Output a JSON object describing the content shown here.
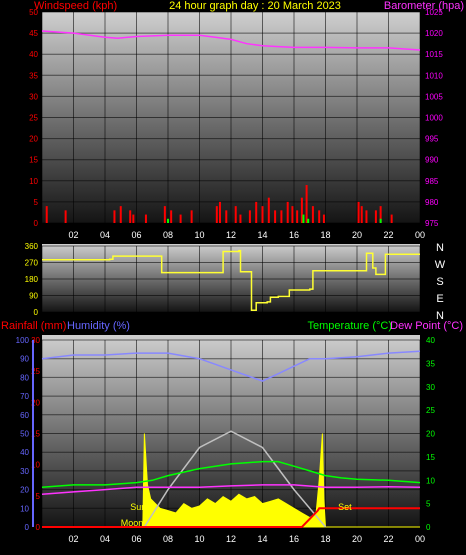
{
  "title": "24 hour graph day : 20 March 2023",
  "colors": {
    "wind": "#ff0000",
    "gust": "#00ff00",
    "baro": "#ff33ff",
    "dir": "#ffff33",
    "rain": "#ff0000",
    "humidity": "#8888ff",
    "temperature": "#00ff00",
    "dewpoint": "#ff33ff",
    "solar": "#ffff00",
    "sun_arc": "#c0c0c0",
    "text_red": "#ff0000",
    "text_blue": "#6666ff",
    "text_green": "#00ff00",
    "text_magenta": "#ff00ff",
    "text_yellow": "#ffff00",
    "text_white": "#ffffff"
  },
  "x_ticks": [
    "02",
    "04",
    "06",
    "08",
    "10",
    "12",
    "14",
    "16",
    "18",
    "20",
    "22",
    "00"
  ],
  "chart_data": [
    {
      "type": "line",
      "title": "24 hour graph day : 20 March 2023",
      "left_axis": {
        "label": "Windspeed (kph)",
        "ticks": [
          "0",
          "5",
          "10",
          "15",
          "20",
          "25",
          "30",
          "35",
          "40",
          "45",
          "50"
        ],
        "ylim": [
          0,
          50
        ]
      },
      "right_axis": {
        "label": "Barometer (hpa)",
        "ticks": [
          "975",
          "980",
          "985",
          "990",
          "995",
          "1000",
          "1005",
          "1010",
          "1015",
          "1020",
          "1025"
        ],
        "ylim": [
          975,
          1025
        ]
      },
      "xlim": [
        0,
        24
      ],
      "series": [
        {
          "values_x": [
            0,
            2,
            4,
            4.8,
            6,
            8,
            10,
            11,
            12,
            13,
            14,
            15,
            16,
            18,
            20,
            22,
            24
          ],
          "values_y": [
            1020.5,
            1020,
            1019,
            1018.8,
            1019.2,
            1019.5,
            1019.5,
            1019,
            1018.5,
            1017.5,
            1017,
            1016.8,
            1016.6,
            1016.6,
            1016.5,
            1016.5,
            1016
          ]
        },
        {
          "values_x": [
            0.3,
            1.5,
            4.6,
            5,
            5.6,
            5.8,
            6.6,
            7.8,
            8.2,
            8.8,
            9.5,
            11.1,
            11.3,
            11.7,
            12.3,
            12.6,
            13.2,
            13.6,
            14,
            14.4,
            14.8,
            15.2,
            15.6,
            15.9,
            16.2,
            16.5,
            16.8,
            17.2,
            17.6,
            17.9,
            20.1,
            20.3,
            20.6,
            21.2,
            21.5,
            22.2
          ],
          "values_y": [
            4,
            3,
            3,
            4,
            3,
            2,
            2,
            4,
            3,
            2,
            3,
            4,
            5,
            3,
            4,
            2,
            3,
            5,
            4,
            6,
            3,
            3,
            5,
            4,
            3,
            6,
            9,
            4,
            3,
            2,
            5,
            4,
            3,
            3,
            4,
            2
          ]
        },
        {
          "values_x": [
            8,
            16.6,
            16.9,
            21.5
          ],
          "values_y": [
            1,
            2,
            1,
            1
          ]
        }
      ]
    },
    {
      "type": "line",
      "left_axis": {
        "ticks": [
          "0",
          "90",
          "180",
          "270",
          "360"
        ],
        "ylim": [
          0,
          360
        ]
      },
      "right_axis": {
        "ticks": [
          "N",
          "E",
          "S",
          "W",
          "N"
        ]
      },
      "xlim": [
        0,
        24
      ],
      "series": [
        {
          "values_x": [
            0,
            4.3,
            4.5,
            7.5,
            7.6,
            11.3,
            11.5,
            12.5,
            12.6,
            13.2,
            13.3,
            13.6,
            14.3,
            14.5,
            15,
            15.5,
            15.7,
            17,
            17.2,
            20.4,
            20.6,
            21,
            21.2,
            21.6,
            21.8,
            24
          ],
          "values_y": [
            285,
            288,
            305,
            305,
            215,
            215,
            330,
            335,
            220,
            220,
            10,
            50,
            55,
            80,
            85,
            85,
            120,
            125,
            225,
            225,
            320,
            240,
            205,
            205,
            315,
            315
          ]
        }
      ]
    },
    {
      "type": "line",
      "left_axis_rain": {
        "label": "Rainfall (mm)",
        "ticks": [
          "0",
          "5",
          "10",
          "15",
          "20",
          "25",
          "30"
        ],
        "ylim": [
          0,
          30
        ]
      },
      "left_axis_humidity": {
        "label": "Humidity (%)",
        "ticks": [
          "0",
          "10",
          "20",
          "30",
          "40",
          "50",
          "60",
          "70",
          "80",
          "90",
          "100"
        ],
        "ylim": [
          0,
          100
        ]
      },
      "right_axis": {
        "label": "Temperature (°C)",
        "label2": "Dew Point (°C)",
        "ticks": [
          "0",
          "5",
          "10",
          "15",
          "20",
          "25",
          "30",
          "35",
          "40"
        ],
        "ylim": [
          0,
          40
        ]
      },
      "xlim": [
        0,
        24
      ],
      "annotations": [
        "Sun",
        "Moon",
        "Set"
      ],
      "series": [
        {
          "values_x": [
            0,
            2,
            4,
            6,
            8,
            10,
            11,
            12,
            13,
            14,
            15,
            16,
            17,
            18,
            20,
            22,
            24
          ],
          "values_y": [
            90,
            92,
            92,
            93,
            93,
            90,
            87,
            84,
            81,
            78,
            82,
            86,
            90,
            90,
            91,
            93,
            94
          ]
        },
        {
          "values_x": [
            0,
            2,
            4,
            6,
            7,
            8,
            10,
            12,
            14,
            15,
            16,
            17,
            18,
            19,
            20,
            22,
            24
          ],
          "values_y": [
            8.5,
            9,
            9,
            9.5,
            10,
            11,
            12.5,
            13.5,
            14,
            14,
            13,
            12,
            11,
            10.5,
            10.2,
            10,
            9.5
          ]
        },
        {
          "values_x": [
            0,
            2,
            4,
            6,
            8,
            10,
            12,
            14,
            16,
            18,
            20,
            22,
            24
          ],
          "values_y": [
            7,
            7.5,
            8,
            8.5,
            8.5,
            8.5,
            8.8,
            9,
            9,
            8.5,
            8.5,
            8.6,
            8.5
          ]
        },
        {
          "values_x": [
            6.5,
            8,
            10,
            12,
            14,
            16,
            18
          ],
          "values_y": [
            0,
            8,
            17,
            20.5,
            17,
            8,
            0
          ]
        },
        {
          "values_x": [
            0,
            6.4,
            6.5,
            6.7,
            6.9,
            7.2,
            7.5,
            8,
            8.5,
            9,
            9.5,
            10,
            10.5,
            11,
            11.5,
            12,
            12.5,
            13,
            13.5,
            14,
            14.5,
            15,
            15.5,
            16,
            16.5,
            17,
            17.4,
            17.6,
            17.8,
            17.9,
            18,
            24
          ],
          "values_y": [
            0,
            0,
            20,
            9,
            6,
            5,
            4,
            3.5,
            3,
            5,
            4,
            4.5,
            6,
            5,
            6.5,
            5.5,
            7,
            6,
            6.5,
            5,
            5.5,
            6,
            5,
            4,
            3,
            2,
            3,
            10,
            20,
            6,
            0,
            0
          ]
        },
        {
          "values_x": [
            0,
            16.5,
            17.5,
            17.6,
            24
          ],
          "values_y": [
            0,
            0,
            2.6,
            3,
            3
          ]
        }
      ]
    }
  ]
}
